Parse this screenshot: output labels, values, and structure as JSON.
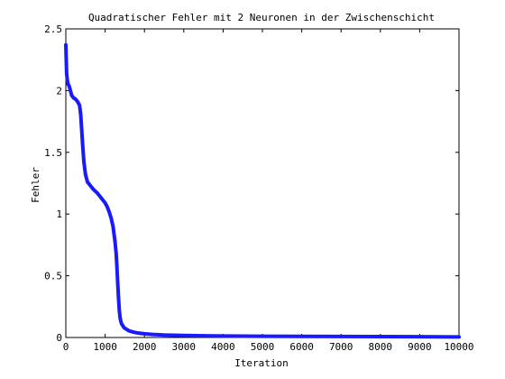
{
  "chart_data": {
    "type": "scatter",
    "title": "Quadratischer Fehler mit 2 Neuronen in der Zwischenschicht",
    "xlabel": "Iteration",
    "ylabel": "Fehler",
    "xlim": [
      0,
      10000
    ],
    "ylim": [
      0,
      2.5
    ],
    "x_ticks": [
      0,
      1000,
      2000,
      3000,
      4000,
      5000,
      6000,
      7000,
      8000,
      9000,
      10000
    ],
    "x_tick_labels": [
      "0",
      "1000",
      "2000",
      "3000",
      "4000",
      "5000",
      "6000",
      "7000",
      "8000",
      "9000",
      "10000"
    ],
    "y_ticks": [
      0,
      0.5,
      1,
      1.5,
      2,
      2.5
    ],
    "y_tick_labels": [
      "0",
      "0.5",
      "1",
      "1.5",
      "2",
      "2.5"
    ],
    "grid": false,
    "legend": "none",
    "series": [
      {
        "color": "#1a1aff",
        "marker": "dot",
        "x": [
          0,
          20,
          40,
          60,
          80,
          100,
          150,
          200,
          250,
          300,
          350,
          380,
          400,
          430,
          460,
          500,
          550,
          600,
          650,
          700,
          800,
          900,
          1000,
          1050,
          1100,
          1150,
          1200,
          1250,
          1280,
          1300,
          1320,
          1340,
          1360,
          1380,
          1400,
          1420,
          1440,
          1460,
          1480,
          1500,
          1550,
          1600,
          1700,
          1800,
          1900,
          2000,
          2200,
          2500,
          3000,
          3500,
          4000,
          5000,
          6000,
          7000,
          8000,
          9000,
          10000
        ],
        "y": [
          2.37,
          2.14,
          2.08,
          2.05,
          2.04,
          2.02,
          1.96,
          1.94,
          1.93,
          1.91,
          1.88,
          1.8,
          1.7,
          1.55,
          1.42,
          1.32,
          1.26,
          1.24,
          1.22,
          1.2,
          1.17,
          1.13,
          1.09,
          1.06,
          1.02,
          0.97,
          0.9,
          0.78,
          0.68,
          0.57,
          0.44,
          0.32,
          0.22,
          0.16,
          0.13,
          0.11,
          0.1,
          0.09,
          0.08,
          0.075,
          0.065,
          0.055,
          0.045,
          0.038,
          0.034,
          0.03,
          0.025,
          0.02,
          0.016,
          0.014,
          0.012,
          0.01,
          0.009,
          0.008,
          0.007,
          0.006,
          0.005
        ]
      }
    ]
  }
}
